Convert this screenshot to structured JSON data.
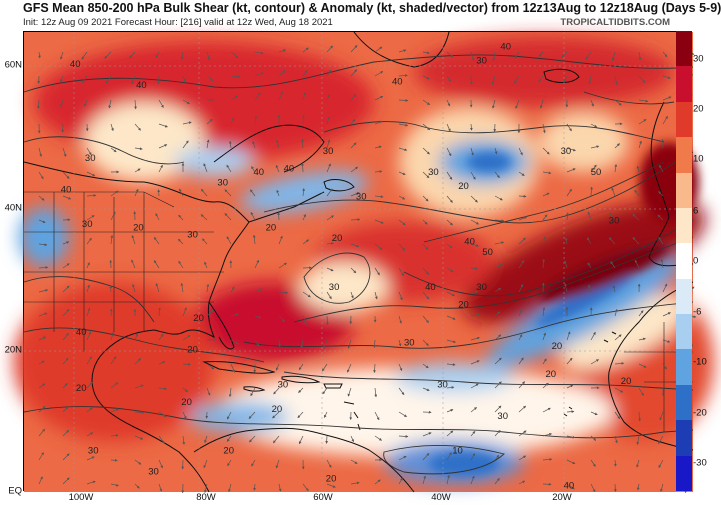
{
  "header": {
    "title": "GFS Mean 850-200 hPa Bulk Shear (kt, contour) & Anomaly (kt, shaded/vector) from 12z13Aug to 12z18Aug (Days 5-9)",
    "subtitle": "Init: 12z Aug 09 2021   Forecast Hour: [216]   valid at 12z Wed, Aug 18 2021",
    "credit": "TROPICALTIDBITS.COM"
  },
  "axes": {
    "lat_labels": [
      "60N",
      "40N",
      "20N",
      "EQ"
    ],
    "lon_labels": [
      "100W",
      "80W",
      "60W",
      "40W",
      "20W"
    ]
  },
  "colorbar": {
    "ticks": [
      "30",
      "20",
      "10",
      "6",
      "0",
      "-6",
      "-10",
      "-20",
      "-30"
    ],
    "colors": [
      "#8b0010",
      "#c8102e",
      "#e03a2a",
      "#f07a4a",
      "#f9b98b",
      "#fde7c8",
      "#ffffff",
      "#dbeaf7",
      "#a9cff0",
      "#5fa3e0",
      "#2e6fc8",
      "#1c3db4",
      "#1818c8"
    ]
  },
  "contour_labels": [
    {
      "text": "40",
      "lon": -101.5,
      "lat": 60.5
    },
    {
      "text": "40",
      "lon": -90.5,
      "lat": 57.5
    },
    {
      "text": "40",
      "lon": -48,
      "lat": 58
    },
    {
      "text": "30",
      "lon": -34,
      "lat": 61
    },
    {
      "text": "40",
      "lon": -30,
      "lat": 63
    },
    {
      "text": "30",
      "lon": -59.5,
      "lat": 48
    },
    {
      "text": "40",
      "lon": -66,
      "lat": 45.5
    },
    {
      "text": "30",
      "lon": -77,
      "lat": 43.5
    },
    {
      "text": "30",
      "lon": -54,
      "lat": 41.5
    },
    {
      "text": "30",
      "lon": -42,
      "lat": 45
    },
    {
      "text": "20",
      "lon": -37,
      "lat": 43
    },
    {
      "text": "30",
      "lon": -20,
      "lat": 48
    },
    {
      "text": "50",
      "lon": -15,
      "lat": 45
    },
    {
      "text": "30",
      "lon": -99,
      "lat": 47
    },
    {
      "text": "40",
      "lon": -71,
      "lat": 45
    },
    {
      "text": "40",
      "lon": -103,
      "lat": 42.5
    },
    {
      "text": "30",
      "lon": -99.5,
      "lat": 37.5
    },
    {
      "text": "20",
      "lon": -91,
      "lat": 37
    },
    {
      "text": "30",
      "lon": -82,
      "lat": 36
    },
    {
      "text": "20",
      "lon": -58,
      "lat": 35.5
    },
    {
      "text": "20",
      "lon": -69,
      "lat": 37
    },
    {
      "text": "40",
      "lon": -36,
      "lat": 35
    },
    {
      "text": "50",
      "lon": -33,
      "lat": 33.5
    },
    {
      "text": "30",
      "lon": -58.5,
      "lat": 28.5
    },
    {
      "text": "40",
      "lon": -42.5,
      "lat": 28.5
    },
    {
      "text": "30",
      "lon": -34,
      "lat": 28.5
    },
    {
      "text": "30",
      "lon": -12,
      "lat": 38
    },
    {
      "text": "20",
      "lon": -37,
      "lat": 26
    },
    {
      "text": "20",
      "lon": -81,
      "lat": 24
    },
    {
      "text": "30",
      "lon": -46,
      "lat": 20.5
    },
    {
      "text": "20",
      "lon": -21.5,
      "lat": 20
    },
    {
      "text": "20",
      "lon": -82,
      "lat": 19.5
    },
    {
      "text": "20",
      "lon": -22.5,
      "lat": 16
    },
    {
      "text": "20",
      "lon": -10,
      "lat": 15
    },
    {
      "text": "30",
      "lon": -67,
      "lat": 14.5
    },
    {
      "text": "30",
      "lon": -40.5,
      "lat": 14.5
    },
    {
      "text": "20",
      "lon": -83,
      "lat": 12
    },
    {
      "text": "30",
      "lon": -30.5,
      "lat": 10
    },
    {
      "text": "20",
      "lon": -68,
      "lat": 11
    },
    {
      "text": "20",
      "lon": -76,
      "lat": 5
    },
    {
      "text": "10",
      "lon": -38,
      "lat": 5
    },
    {
      "text": "30",
      "lon": -88.5,
      "lat": 2
    },
    {
      "text": "20",
      "lon": -59,
      "lat": 1
    },
    {
      "text": "30",
      "lon": -98.5,
      "lat": 5
    },
    {
      "text": "20",
      "lon": -100.5,
      "lat": 14
    },
    {
      "text": "40",
      "lon": -19.5,
      "lat": 0
    },
    {
      "text": "40",
      "lon": -100.5,
      "lat": 22
    }
  ]
}
